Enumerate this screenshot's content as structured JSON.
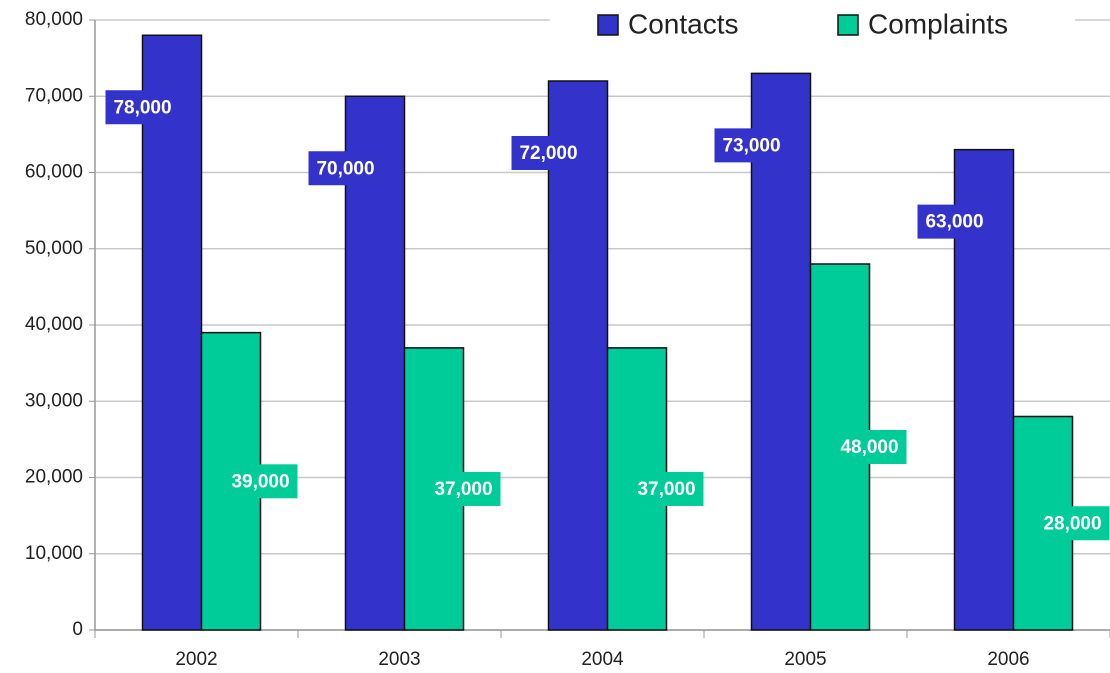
{
  "chart_data": {
    "type": "bar",
    "categories": [
      "2002",
      "2003",
      "2004",
      "2005",
      "2006"
    ],
    "series": [
      {
        "name": "Contacts",
        "color": "#3333cc",
        "values": [
          78000,
          70000,
          72000,
          73000,
          63000
        ],
        "value_labels": [
          "78,000",
          "70,000",
          "72,000",
          "73,000",
          "63,000"
        ]
      },
      {
        "name": "Complaints",
        "color": "#00cc99",
        "values": [
          39000,
          37000,
          37000,
          48000,
          28000
        ],
        "value_labels": [
          "39,000",
          "37,000",
          "37,000",
          "48,000",
          "28,000"
        ]
      }
    ],
    "ylim": [
      0,
      80000
    ],
    "yticks": [
      0,
      {
        "value": 10000,
        "label": "10,000"
      },
      {
        "value": 20000,
        "label": "20,000"
      },
      {
        "value": 30000,
        "label": "30,000"
      },
      {
        "value": 40000,
        "label": "40,000"
      },
      {
        "value": 50000,
        "label": "50,000"
      },
      {
        "value": 60000,
        "label": "60,000"
      },
      {
        "value": 70000,
        "label": "70,000"
      },
      {
        "value": 80000,
        "label": "80,000"
      }
    ],
    "grid": true,
    "legend": "top-right"
  }
}
